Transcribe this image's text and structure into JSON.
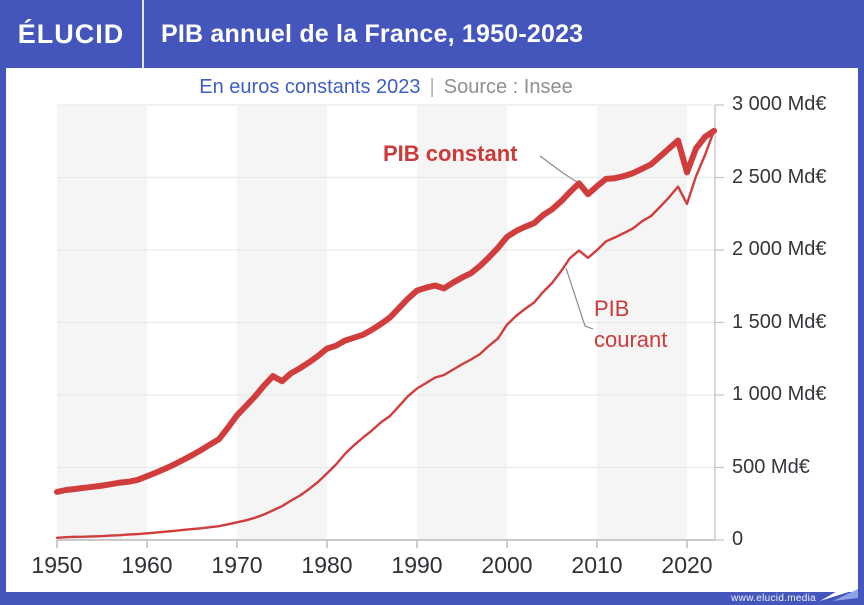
{
  "header": {
    "logo": "ÉLUCID",
    "title": "PIB annuel de la France, 1950-2023"
  },
  "subtitle": {
    "highlight": "En euros constants 2023",
    "separator": "|",
    "source": "Source : Insee"
  },
  "annotations": {
    "constant_label": "PIB constant",
    "courant_label_line1": "PIB",
    "courant_label_line2": "courant"
  },
  "footer": {
    "url": "www.elucid.media"
  },
  "colors": {
    "brand_blue": "#4456bc",
    "series_red": "#d13d3d",
    "subtitle_blue": "#3f5dc4",
    "subtitle_gray": "#8f8f8f",
    "stripe_gray": "#f5f5f5",
    "gridline": "#e9e9e9",
    "axis_line": "#c4c4c4",
    "pointer_line": "#8a8a8a",
    "tick_text": "#33363b"
  },
  "chart_data": {
    "type": "line",
    "title": "PIB annuel de la France, 1950-2023",
    "unit": "Md€",
    "xlim": [
      1950,
      2023
    ],
    "ylim": [
      0,
      3000
    ],
    "x_ticks": [
      1950,
      1960,
      1970,
      1980,
      1990,
      2000,
      2010,
      2020
    ],
    "y_ticks": [
      {
        "value": 0,
        "label": "0"
      },
      {
        "value": 500,
        "label": "500 Md€"
      },
      {
        "value": 1000,
        "label": "1 000 Md€"
      },
      {
        "value": 1500,
        "label": "1 500 Md€"
      },
      {
        "value": 2000,
        "label": "2 000 Md€"
      },
      {
        "value": 2500,
        "label": "2 500 Md€"
      },
      {
        "value": 3000,
        "label": "3 000 Md€"
      }
    ],
    "stripes": {
      "shaded_decades": [
        1950,
        1970,
        1990,
        2010
      ],
      "note": "alternating decade background bands"
    },
    "x": [
      1950,
      1951,
      1952,
      1953,
      1954,
      1955,
      1956,
      1957,
      1958,
      1959,
      1960,
      1961,
      1962,
      1963,
      1964,
      1965,
      1966,
      1967,
      1968,
      1969,
      1970,
      1971,
      1972,
      1973,
      1974,
      1975,
      1976,
      1977,
      1978,
      1979,
      1980,
      1981,
      1982,
      1983,
      1984,
      1985,
      1986,
      1987,
      1988,
      1989,
      1990,
      1991,
      1992,
      1993,
      1994,
      1995,
      1996,
      1997,
      1998,
      1999,
      2000,
      2001,
      2002,
      2003,
      2004,
      2005,
      2006,
      2007,
      2008,
      2009,
      2010,
      2011,
      2012,
      2013,
      2014,
      2015,
      2016,
      2017,
      2018,
      2019,
      2020,
      2021,
      2022,
      2023
    ],
    "series": [
      {
        "name": "PIB constant",
        "stroke_width": 6,
        "values": [
          332,
          345,
          352,
          360,
          367,
          375,
          385,
          396,
          402,
          415,
          440,
          465,
          492,
          520,
          552,
          585,
          620,
          658,
          695,
          775,
          860,
          925,
          990,
          1065,
          1130,
          1095,
          1150,
          1185,
          1225,
          1270,
          1320,
          1340,
          1375,
          1395,
          1415,
          1450,
          1490,
          1535,
          1600,
          1665,
          1720,
          1740,
          1755,
          1735,
          1775,
          1810,
          1840,
          1890,
          1950,
          2015,
          2090,
          2130,
          2160,
          2185,
          2240,
          2280,
          2335,
          2400,
          2460,
          2385,
          2440,
          2490,
          2495,
          2510,
          2530,
          2560,
          2590,
          2645,
          2700,
          2755,
          2535,
          2700,
          2780,
          2822
        ]
      },
      {
        "name": "PIB courant",
        "stroke_width": 2.4,
        "values": [
          15,
          19,
          22,
          23,
          25,
          27,
          30,
          33,
          38,
          41,
          46,
          51,
          57,
          63,
          70,
          75,
          81,
          88,
          95,
          108,
          122,
          136,
          153,
          176,
          204,
          233,
          272,
          307,
          351,
          400,
          459,
          521,
          594,
          653,
          706,
          756,
          812,
          855,
          923,
          992,
          1045,
          1082,
          1120,
          1138,
          1175,
          1212,
          1245,
          1283,
          1339,
          1390,
          1485,
          1545,
          1594,
          1637,
          1710,
          1772,
          1853,
          1945,
          1996,
          1946,
          1999,
          2059,
          2087,
          2117,
          2149,
          2198,
          2234,
          2297,
          2363,
          2437,
          2318,
          2508,
          2655,
          2822
        ]
      }
    ]
  }
}
